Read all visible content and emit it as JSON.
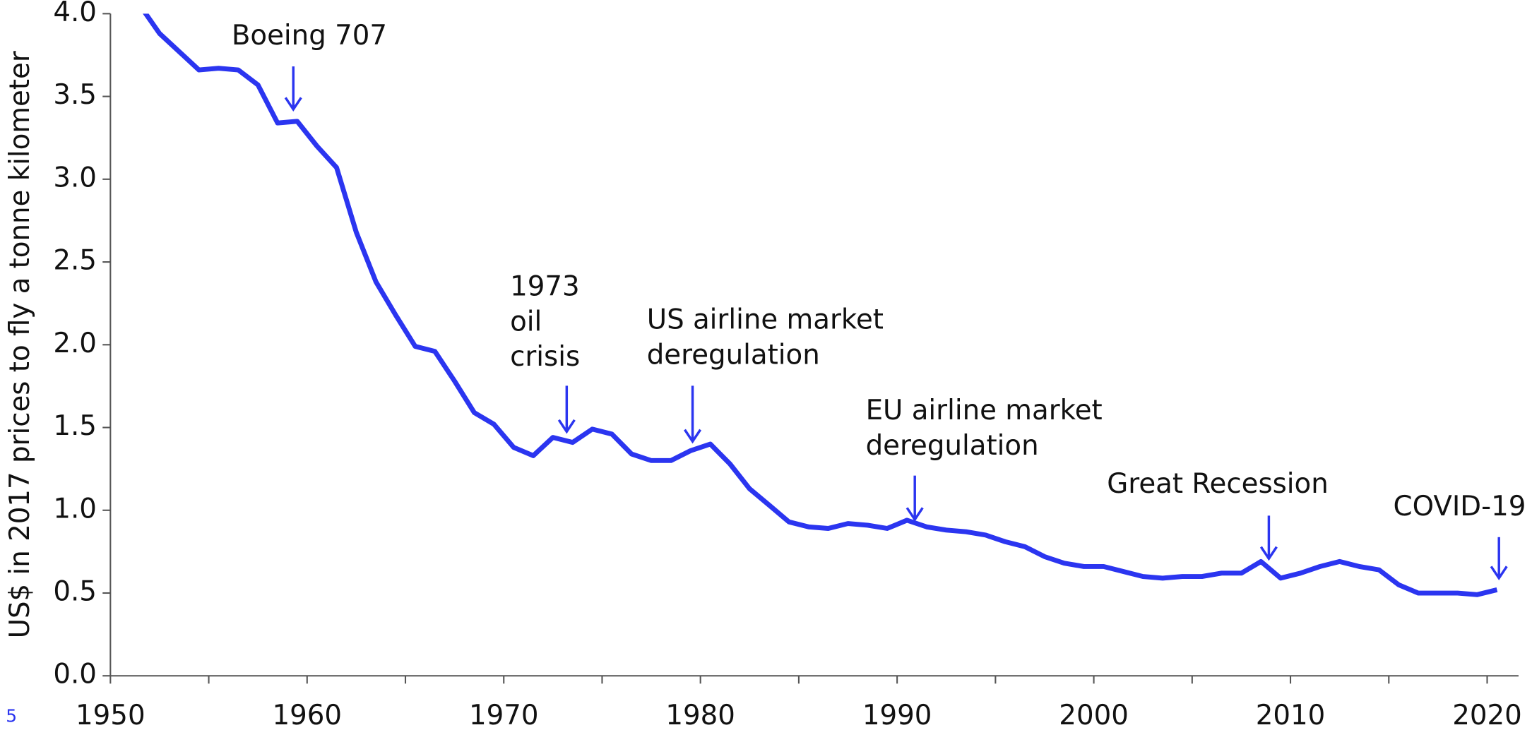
{
  "chart_data": {
    "type": "line",
    "y_label": "US$ in 2017 prices to fly a tonne kilometer",
    "page_number": "5",
    "xlim": [
      1950,
      2021
    ],
    "xticks": [
      1950,
      1960,
      1970,
      1980,
      1990,
      2000,
      2010,
      2020
    ],
    "xminor_ticks": [
      1955,
      1965,
      1975,
      1985,
      1995,
      2005,
      2015
    ],
    "ylim": [
      0,
      4
    ],
    "yticks": [
      {
        "value": 0,
        "label": "0.0"
      },
      {
        "value": 0.5,
        "label": "0.5"
      },
      {
        "value": 1,
        "label": "1.0"
      },
      {
        "value": 1.5,
        "label": "1.5"
      },
      {
        "value": 2,
        "label": "2.0"
      },
      {
        "value": 2.5,
        "label": "2.5"
      },
      {
        "value": 3,
        "label": "3.0"
      },
      {
        "value": 3.5,
        "label": "3.5"
      },
      {
        "value": 4,
        "label": "4.0"
      }
    ],
    "grid": false,
    "color": "#2b35f0",
    "x": [
      1951.5,
      1952.5,
      1953.5,
      1954.5,
      1955.5,
      1956.5,
      1957.5,
      1958.5,
      1959.5,
      1960.5,
      1961.5,
      1962.5,
      1963.5,
      1964.5,
      1965.5,
      1966.5,
      1967.5,
      1968.5,
      1969.5,
      1970.5,
      1971.5,
      1972.5,
      1973.5,
      1974.5,
      1975.5,
      1976.5,
      1977.5,
      1978.5,
      1979.5,
      1980.5,
      1981.5,
      1982.5,
      1983.5,
      1984.5,
      1985.5,
      1986.5,
      1987.5,
      1988.5,
      1989.5,
      1990.5,
      1991.5,
      1992.5,
      1993.5,
      1994.5,
      1995.5,
      1996.5,
      1997.5,
      1998.5,
      1999.5,
      2000.5,
      2001.5,
      2002.5,
      2003.5,
      2004.5,
      2005.5,
      2006.5,
      2007.5,
      2008.5,
      2009.5,
      2010.5,
      2011.5,
      2012.5,
      2013.5,
      2014.5,
      2015.5,
      2016.5,
      2017.5,
      2018.5,
      2019.5,
      2020.5
    ],
    "values": [
      4.05,
      3.88,
      3.77,
      3.66,
      3.67,
      3.66,
      3.57,
      3.34,
      3.35,
      3.2,
      3.07,
      2.68,
      2.38,
      2.18,
      1.99,
      1.96,
      1.78,
      1.59,
      1.52,
      1.38,
      1.33,
      1.44,
      1.41,
      1.49,
      1.46,
      1.34,
      1.3,
      1.3,
      1.36,
      1.4,
      1.28,
      1.13,
      1.03,
      0.93,
      0.9,
      0.89,
      0.92,
      0.91,
      0.89,
      0.94,
      0.9,
      0.88,
      0.87,
      0.85,
      0.81,
      0.78,
      0.72,
      0.68,
      0.66,
      0.66,
      0.63,
      0.6,
      0.59,
      0.6,
      0.6,
      0.62,
      0.62,
      0.69,
      0.59,
      0.62,
      0.66,
      0.69,
      0.66,
      0.64,
      0.55,
      0.5,
      0.5,
      0.5,
      0.49,
      0.52
    ],
    "annotations": [
      {
        "lines": [
          "Boeing 707"
        ],
        "x": 1959.3
      },
      {
        "lines": [
          "1973",
          "oil",
          "crisis"
        ],
        "x": 1973.2
      },
      {
        "lines": [
          "US airline market",
          "deregulation"
        ],
        "x": 1979.6
      },
      {
        "lines": [
          "EU airline market",
          "deregulation"
        ],
        "x": 1990.9
      },
      {
        "lines": [
          "Great Recession"
        ],
        "x": 2008.9
      },
      {
        "lines": [
          "COVID-19"
        ],
        "x": 2020.6
      }
    ]
  }
}
